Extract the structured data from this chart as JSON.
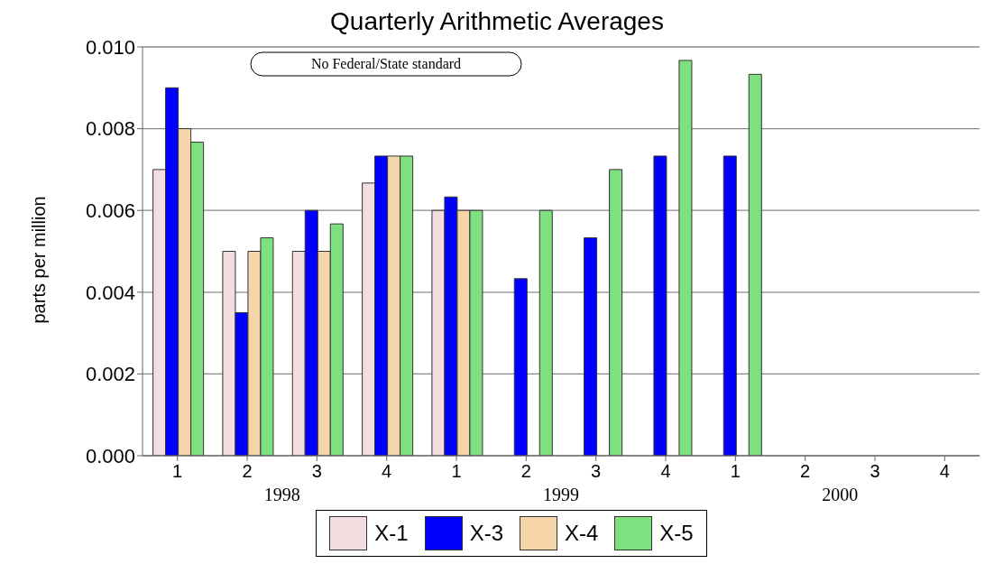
{
  "chart_data": {
    "type": "bar",
    "title": "Quarterly Arithmetic Averages",
    "ylabel": "parts per million",
    "categories": [
      "1",
      "2",
      "3",
      "4",
      "1",
      "2",
      "3",
      "4",
      "1",
      "2",
      "3",
      "4"
    ],
    "series": [
      {
        "name": "X-1",
        "color": "#f2dede",
        "values": [
          0.007,
          0.005,
          0.005,
          0.00667,
          0.006,
          null,
          null,
          null,
          null,
          null,
          null,
          null
        ]
      },
      {
        "name": "X-3",
        "color": "#0000ff",
        "values": [
          0.009,
          0.0035,
          0.006,
          0.00733,
          0.00633,
          0.00433,
          0.00533,
          0.00733,
          0.00733,
          null,
          null,
          null
        ]
      },
      {
        "name": "X-4",
        "color": "#f5d5a8",
        "values": [
          0.008,
          0.005,
          0.005,
          0.00733,
          0.006,
          null,
          null,
          null,
          null,
          null,
          null,
          null
        ]
      },
      {
        "name": "X-5",
        "color": "#7ee07e",
        "values": [
          0.00767,
          0.00533,
          0.00567,
          0.00733,
          0.006,
          0.006,
          0.007,
          0.00967,
          0.00933,
          null,
          null,
          null
        ]
      }
    ],
    "ylim": [
      0,
      0.01
    ],
    "yticks": [
      {
        "value": 0,
        "label": "0.000"
      },
      {
        "value": 0.002,
        "label": "0.002"
      },
      {
        "value": 0.004,
        "label": "0.004"
      },
      {
        "value": 0.006,
        "label": "0.006"
      },
      {
        "value": 0.008,
        "label": "0.008"
      },
      {
        "value": 0.01,
        "label": "0.010"
      }
    ],
    "grid": "y",
    "legend": "bottom",
    "annotations": [
      "No Federal/State standard",
      "1998",
      "1999",
      "2000"
    ]
  }
}
